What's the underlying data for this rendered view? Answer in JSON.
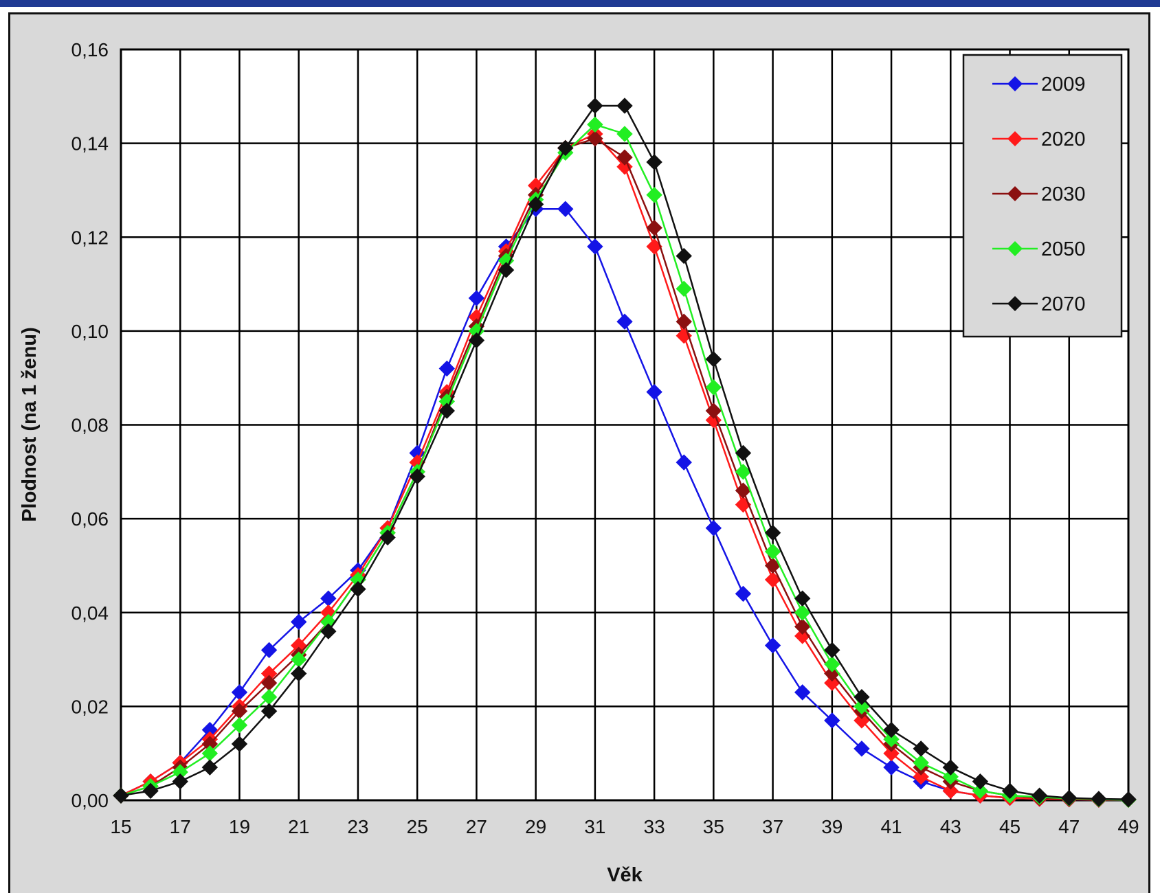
{
  "colors": {
    "header_bar": "#1f3a93",
    "chart_background": "#d9d9d9",
    "plot_background": "#ffffff",
    "grid": "#000000"
  },
  "chart_data": {
    "type": "line",
    "title": "",
    "xlabel": "Věk",
    "ylabel": "Plodnost (na 1 ženu)",
    "x": [
      15,
      16,
      17,
      18,
      19,
      20,
      21,
      22,
      23,
      24,
      25,
      26,
      27,
      28,
      29,
      30,
      31,
      32,
      33,
      34,
      35,
      36,
      37,
      38,
      39,
      40,
      41,
      42,
      43,
      44,
      45,
      46,
      47,
      48,
      49
    ],
    "xlim": [
      15,
      49
    ],
    "ylim": [
      0,
      0.16
    ],
    "x_tick_labels": [
      "15",
      "17",
      "19",
      "21",
      "23",
      "25",
      "27",
      "29",
      "31",
      "33",
      "35",
      "37",
      "39",
      "41",
      "43",
      "45",
      "47",
      "49"
    ],
    "y_ticks": [
      0,
      0.02,
      0.04,
      0.06,
      0.08,
      0.1,
      0.12,
      0.14,
      0.16
    ],
    "y_tick_labels": [
      "0,00",
      "0,02",
      "0,04",
      "0,06",
      "0,08",
      "0,10",
      "0,12",
      "0,14",
      "0,16"
    ],
    "grid": true,
    "legend_position": "top-right",
    "marker": "diamond",
    "series": [
      {
        "name": "2009",
        "color": "#1414e6",
        "values": [
          0.001,
          0.004,
          0.008,
          0.015,
          0.023,
          0.032,
          0.038,
          0.043,
          0.049,
          0.058,
          0.074,
          0.092,
          0.107,
          0.118,
          0.126,
          0.126,
          0.118,
          0.102,
          0.087,
          0.072,
          0.058,
          0.044,
          0.033,
          0.023,
          0.017,
          0.011,
          0.007,
          0.004,
          0.002,
          0.001,
          0.0005,
          0.0003,
          0.0002,
          0.0001,
          0.0001
        ]
      },
      {
        "name": "2020",
        "color": "#ff1a1a",
        "values": [
          0.001,
          0.004,
          0.008,
          0.013,
          0.02,
          0.027,
          0.033,
          0.04,
          0.048,
          0.058,
          0.072,
          0.087,
          0.103,
          0.117,
          0.131,
          0.139,
          0.142,
          0.135,
          0.118,
          0.099,
          0.081,
          0.063,
          0.047,
          0.035,
          0.025,
          0.017,
          0.01,
          0.005,
          0.002,
          0.001,
          0.0005,
          0.0003,
          0.0002,
          0.0001,
          0.0001
        ]
      },
      {
        "name": "2030",
        "color": "#8b1010",
        "values": [
          0.001,
          0.003,
          0.007,
          0.012,
          0.019,
          0.025,
          0.031,
          0.038,
          0.047,
          0.057,
          0.07,
          0.086,
          0.101,
          0.116,
          0.129,
          0.139,
          0.141,
          0.137,
          0.122,
          0.102,
          0.083,
          0.066,
          0.05,
          0.037,
          0.027,
          0.019,
          0.012,
          0.007,
          0.004,
          0.002,
          0.001,
          0.0005,
          0.0003,
          0.0002,
          0.0001
        ]
      },
      {
        "name": "2050",
        "color": "#22ee22",
        "values": [
          0.001,
          0.003,
          0.006,
          0.01,
          0.016,
          0.022,
          0.03,
          0.038,
          0.047,
          0.057,
          0.07,
          0.085,
          0.1,
          0.115,
          0.128,
          0.138,
          0.144,
          0.142,
          0.129,
          0.109,
          0.088,
          0.07,
          0.053,
          0.04,
          0.029,
          0.02,
          0.013,
          0.008,
          0.005,
          0.002,
          0.001,
          0.0007,
          0.0004,
          0.0002,
          0.0001
        ]
      },
      {
        "name": "2070",
        "color": "#111111",
        "values": [
          0.001,
          0.002,
          0.004,
          0.007,
          0.012,
          0.019,
          0.027,
          0.036,
          0.045,
          0.056,
          0.069,
          0.083,
          0.098,
          0.113,
          0.127,
          0.139,
          0.148,
          0.148,
          0.136,
          0.116,
          0.094,
          0.074,
          0.057,
          0.043,
          0.032,
          0.022,
          0.015,
          0.011,
          0.007,
          0.004,
          0.002,
          0.001,
          0.0005,
          0.0003,
          0.0002
        ]
      }
    ]
  }
}
